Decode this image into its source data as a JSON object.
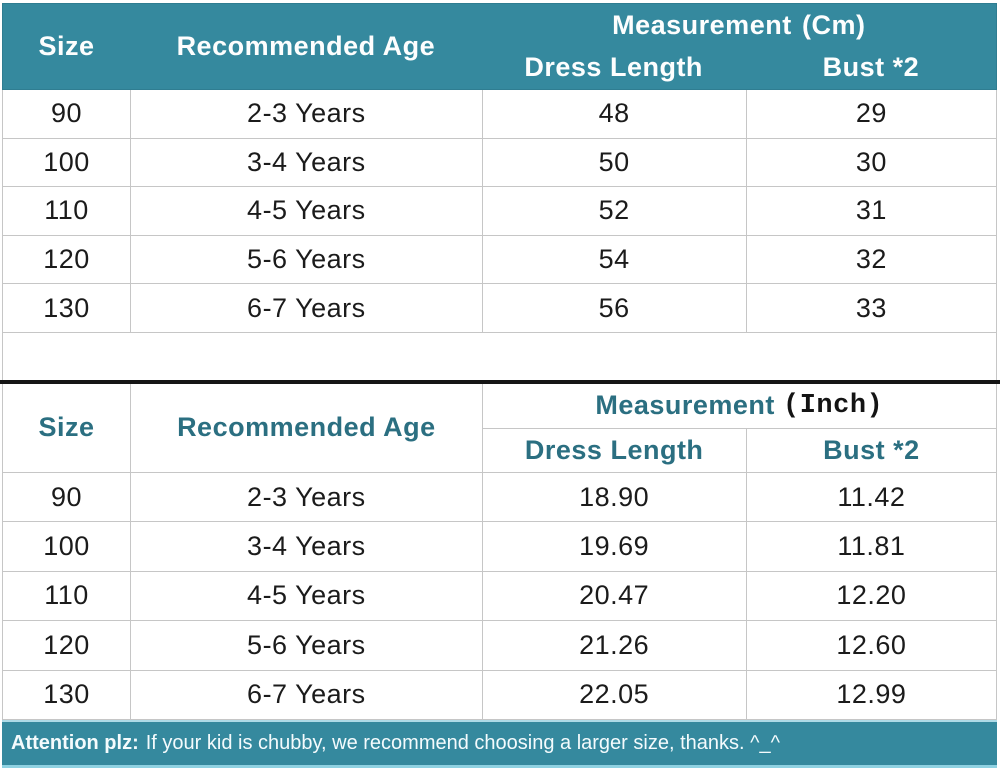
{
  "colors": {
    "header_teal": "#35899E",
    "teal_text": "#2B6F81",
    "row_border": "#C6C6C6",
    "separator_black": "#161616",
    "body_text": "#1B1B1B",
    "header_text_white": "#FDFEFE"
  },
  "chart_data": [
    {
      "type": "table",
      "title": "Measurement (Cm)",
      "header": {
        "size": "Size",
        "age": "Recommended Age",
        "measurement": "Measurement",
        "unit": "(Cm)",
        "dress": "Dress Length",
        "bust": "Bust *2"
      },
      "columns": [
        "Size",
        "Recommended Age",
        "Dress Length",
        "Bust *2"
      ],
      "rows": [
        [
          "90",
          "2-3 Years",
          "48",
          "29"
        ],
        [
          "100",
          "3-4 Years",
          "50",
          "30"
        ],
        [
          "110",
          "4-5 Years",
          "52",
          "31"
        ],
        [
          "120",
          "5-6 Years",
          "54",
          "32"
        ],
        [
          "130",
          "6-7 Years",
          "56",
          "33"
        ]
      ]
    },
    {
      "type": "table",
      "title": "Measurement (Inch)",
      "header": {
        "size": "Size",
        "age": "Recommended Age",
        "measurement": "Measurement",
        "unit": "(Inch)",
        "dress": "Dress Length",
        "bust": "Bust *2"
      },
      "columns": [
        "Size",
        "Recommended Age",
        "Dress Length",
        "Bust *2"
      ],
      "rows": [
        [
          "90",
          "2-3 Years",
          "18.90",
          "11.42"
        ],
        [
          "100",
          "3-4 Years",
          "19.69",
          "11.81"
        ],
        [
          "110",
          "4-5 Years",
          "20.47",
          "12.20"
        ],
        [
          "120",
          "5-6 Years",
          "21.26",
          "12.60"
        ],
        [
          "130",
          "6-7 Years",
          "22.05",
          "12.99"
        ]
      ]
    }
  ],
  "attention": {
    "label": "Attention plz:",
    "text": "If your kid is chubby, we recommend choosing a larger size, thanks. ^_^"
  }
}
